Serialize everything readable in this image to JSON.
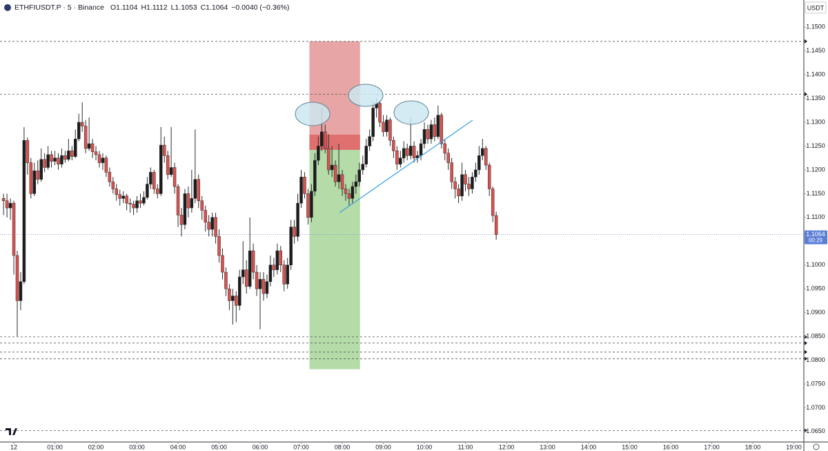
{
  "header": {
    "symbol": "ETHFIUSDT.P · 5 · Binance",
    "open": "O1.1104",
    "high": "H1.1112",
    "low": "L1.1053",
    "close": "C1.1064",
    "change": "−0.0040 (−0.36%)"
  },
  "chart_data": {
    "type": "candlestick",
    "currency": "USDT",
    "colors": {
      "up": "#1c1c1c",
      "down": "#d9534f",
      "outline": "#2a2a2a",
      "stop": "#e8a5a5",
      "stop_hit": "#e07070",
      "target": "#b5dca8",
      "level": "#555555",
      "price_line": "#5b7fd6"
    },
    "xlim": [
      -20.2,
      1152.6
    ],
    "ylim": [
      1.0628,
      1.1557
    ],
    "grid": false,
    "xticks": [
      {
        "value": 0,
        "label": "12"
      },
      {
        "value": 60,
        "label": "01:00"
      },
      {
        "value": 120,
        "label": "02:00"
      },
      {
        "value": 180,
        "label": "03:00"
      },
      {
        "value": 240,
        "label": "04:00"
      },
      {
        "value": 300,
        "label": "05:00"
      },
      {
        "value": 360,
        "label": "06:00"
      },
      {
        "value": 420,
        "label": "07:00"
      },
      {
        "value": 480,
        "label": "08:00"
      },
      {
        "value": 540,
        "label": "09:00"
      },
      {
        "value": 600,
        "label": "10:00"
      },
      {
        "value": 660,
        "label": "11:00"
      },
      {
        "value": 720,
        "label": "12:00"
      },
      {
        "value": 780,
        "label": "13:00"
      },
      {
        "value": 840,
        "label": "14:00"
      },
      {
        "value": 900,
        "label": "15:00"
      },
      {
        "value": 960,
        "label": "16:00"
      },
      {
        "value": 1020,
        "label": "17:00"
      },
      {
        "value": 1080,
        "label": "18:00"
      },
      {
        "value": 1140,
        "label": "19:00"
      }
    ],
    "yticks": [
      {
        "value": 1.15,
        "label": "1.1500"
      },
      {
        "value": 1.145,
        "label": "1.1450"
      },
      {
        "value": 1.14,
        "label": "1.1400"
      },
      {
        "value": 1.135,
        "label": "1.1350"
      },
      {
        "value": 1.13,
        "label": "1.1300"
      },
      {
        "value": 1.125,
        "label": "1.1250"
      },
      {
        "value": 1.12,
        "label": "1.1200"
      },
      {
        "value": 1.115,
        "label": "1.1150"
      },
      {
        "value": 1.11,
        "label": "1.1100"
      },
      {
        "value": 1.1,
        "label": "1.1000"
      },
      {
        "value": 1.095,
        "label": "1.0950"
      },
      {
        "value": 1.09,
        "label": "1.0900"
      },
      {
        "value": 1.085,
        "label": "1.0850"
      },
      {
        "value": 1.08,
        "label": "1.0800"
      },
      {
        "value": 1.075,
        "label": "1.0750"
      },
      {
        "value": 1.07,
        "label": "1.0700"
      },
      {
        "value": 1.065,
        "label": "1.0650"
      }
    ],
    "levels": [
      1.147,
      1.1359,
      1.0849,
      1.0836,
      1.0817,
      1.0803,
      1.0652
    ],
    "last_price": {
      "value": 1.1064,
      "label": "1.1064"
    },
    "countdown": "00:29",
    "position": {
      "x": [
        432,
        506
      ],
      "stop": 1.147,
      "entry": 1.1242,
      "current": 1.1274,
      "target": 1.0781
    },
    "candles": [
      [
        -15,
        1.114,
        1.115,
        1.1105,
        1.1135
      ],
      [
        -10,
        1.1135,
        1.115,
        1.11,
        1.112
      ],
      [
        -5,
        1.112,
        1.114,
        1.1095,
        1.113
      ],
      [
        0,
        1.113,
        1.1135,
        1.098,
        1.102
      ],
      [
        5,
        1.102,
        1.103,
        1.085,
        1.0925
      ],
      [
        10,
        1.0925,
        1.0985,
        1.0905,
        1.0965
      ],
      [
        15,
        1.0965,
        1.129,
        1.096,
        1.1262
      ],
      [
        20,
        1.1262,
        1.1268,
        1.119,
        1.1215
      ],
      [
        25,
        1.1215,
        1.1225,
        1.114,
        1.115
      ],
      [
        30,
        1.115,
        1.1215,
        1.1145,
        1.1198
      ],
      [
        35,
        1.1198,
        1.122,
        1.117,
        1.118
      ],
      [
        40,
        1.118,
        1.1245,
        1.1175,
        1.1222
      ],
      [
        45,
        1.1222,
        1.1235,
        1.1195,
        1.1205
      ],
      [
        50,
        1.1205,
        1.125,
        1.12,
        1.1232
      ],
      [
        55,
        1.1232,
        1.124,
        1.1205,
        1.1218
      ],
      [
        60,
        1.1218,
        1.124,
        1.121,
        1.1225
      ],
      [
        65,
        1.1225,
        1.1235,
        1.12,
        1.1212
      ],
      [
        70,
        1.1212,
        1.1245,
        1.1205,
        1.123
      ],
      [
        75,
        1.123,
        1.124,
        1.1215,
        1.1222
      ],
      [
        80,
        1.1222,
        1.1265,
        1.1218,
        1.124
      ],
      [
        85,
        1.124,
        1.125,
        1.122,
        1.1228
      ],
      [
        90,
        1.1228,
        1.1285,
        1.1225,
        1.1265
      ],
      [
        95,
        1.1265,
        1.1318,
        1.126,
        1.13
      ],
      [
        100,
        1.13,
        1.1342,
        1.128,
        1.1292
      ],
      [
        105,
        1.1292,
        1.1305,
        1.1235,
        1.1245
      ],
      [
        110,
        1.1245,
        1.131,
        1.124,
        1.1255
      ],
      [
        115,
        1.1255,
        1.1265,
        1.1225,
        1.1238
      ],
      [
        120,
        1.1238,
        1.125,
        1.122,
        1.1232
      ],
      [
        125,
        1.1232,
        1.124,
        1.1205,
        1.1215
      ],
      [
        130,
        1.1215,
        1.1235,
        1.12,
        1.1225
      ],
      [
        135,
        1.1225,
        1.123,
        1.1185,
        1.1195
      ],
      [
        140,
        1.1195,
        1.1205,
        1.1165,
        1.1175
      ],
      [
        145,
        1.1175,
        1.1185,
        1.115,
        1.116
      ],
      [
        150,
        1.116,
        1.117,
        1.1135,
        1.1148
      ],
      [
        155,
        1.1148,
        1.1158,
        1.1125,
        1.114
      ],
      [
        160,
        1.114,
        1.1155,
        1.113,
        1.1145
      ],
      [
        165,
        1.1145,
        1.115,
        1.1115,
        1.113
      ],
      [
        170,
        1.113,
        1.114,
        1.111,
        1.1128
      ],
      [
        175,
        1.1128,
        1.1135,
        1.1105,
        1.112
      ],
      [
        180,
        1.112,
        1.1145,
        1.111,
        1.1135
      ],
      [
        185,
        1.1135,
        1.115,
        1.112,
        1.113
      ],
      [
        190,
        1.113,
        1.1155,
        1.1125,
        1.1142
      ],
      [
        195,
        1.1142,
        1.1185,
        1.1138,
        1.117
      ],
      [
        200,
        1.117,
        1.1205,
        1.116,
        1.1195
      ],
      [
        205,
        1.1195,
        1.12,
        1.115,
        1.116
      ],
      [
        210,
        1.116,
        1.117,
        1.114,
        1.115
      ],
      [
        215,
        1.115,
        1.129,
        1.1145,
        1.1252
      ],
      [
        220,
        1.1252,
        1.127,
        1.1215,
        1.123
      ],
      [
        225,
        1.123,
        1.124,
        1.118,
        1.119
      ],
      [
        230,
        1.119,
        1.129,
        1.1185,
        1.1205
      ],
      [
        235,
        1.1205,
        1.1215,
        1.115,
        1.1165
      ],
      [
        240,
        1.1165,
        1.117,
        1.108,
        1.1105
      ],
      [
        245,
        1.1105,
        1.112,
        1.106,
        1.1085
      ],
      [
        250,
        1.1085,
        1.116,
        1.1075,
        1.115
      ],
      [
        255,
        1.115,
        1.1165,
        1.11,
        1.112
      ],
      [
        260,
        1.112,
        1.12,
        1.111,
        1.114
      ],
      [
        265,
        1.114,
        1.1285,
        1.113,
        1.118
      ],
      [
        270,
        1.118,
        1.119,
        1.112,
        1.1135
      ],
      [
        275,
        1.1135,
        1.1145,
        1.1095,
        1.1115
      ],
      [
        280,
        1.1115,
        1.1125,
        1.107,
        1.109
      ],
      [
        285,
        1.109,
        1.1105,
        1.106,
        1.1075
      ],
      [
        290,
        1.1075,
        1.111,
        1.106,
        1.11
      ],
      [
        295,
        1.11,
        1.111,
        1.1045,
        1.106
      ],
      [
        300,
        1.106,
        1.1075,
        1.1005,
        1.102
      ],
      [
        305,
        1.102,
        1.1035,
        1.097,
        1.0985
      ],
      [
        310,
        1.0985,
        1.0995,
        1.0935,
        1.095
      ],
      [
        315,
        1.095,
        1.096,
        1.0905,
        1.0925
      ],
      [
        320,
        1.0925,
        1.095,
        1.0875,
        1.0935
      ],
      [
        325,
        1.0935,
        1.0945,
        1.088,
        1.0915
      ],
      [
        330,
        1.0915,
        1.099,
        1.0905,
        1.0975
      ],
      [
        335,
        1.0975,
        1.105,
        1.096,
        1.099
      ],
      [
        340,
        1.099,
        1.101,
        1.094,
        1.0955
      ],
      [
        345,
        1.0955,
        1.11,
        1.095,
        1.103
      ],
      [
        350,
        1.103,
        1.1045,
        1.097,
        1.0985
      ],
      [
        355,
        1.0985,
        1.1,
        1.0935,
        1.095
      ],
      [
        360,
        1.095,
        1.0985,
        1.0865,
        1.097
      ],
      [
        365,
        1.097,
        1.0985,
        1.0925,
        1.094
      ],
      [
        370,
        1.094,
        1.098,
        1.093,
        1.0965
      ],
      [
        375,
        1.0965,
        1.102,
        1.0955,
        1.1
      ],
      [
        380,
        1.1,
        1.1015,
        1.0975,
        1.099
      ],
      [
        385,
        1.099,
        1.1045,
        1.098,
        1.103
      ],
      [
        390,
        1.103,
        1.104,
        1.0985,
        1.1
      ],
      [
        395,
        1.1,
        1.101,
        1.0945,
        1.096
      ],
      [
        400,
        1.096,
        1.1015,
        1.095,
        1.1
      ],
      [
        405,
        1.1,
        1.1095,
        1.099,
        1.108
      ],
      [
        410,
        1.108,
        1.1095,
        1.1045,
        1.106
      ],
      [
        415,
        1.106,
        1.115,
        1.105,
        1.113
      ],
      [
        420,
        1.113,
        1.12,
        1.112,
        1.1185
      ],
      [
        425,
        1.1185,
        1.1195,
        1.114,
        1.115
      ],
      [
        430,
        1.115,
        1.116,
        1.1085,
        1.11
      ],
      [
        435,
        1.11,
        1.117,
        1.109,
        1.1155
      ],
      [
        440,
        1.1155,
        1.1235,
        1.1145,
        1.122
      ],
      [
        445,
        1.122,
        1.127,
        1.121,
        1.125
      ],
      [
        450,
        1.125,
        1.133,
        1.124,
        1.128
      ],
      [
        455,
        1.128,
        1.1295,
        1.1235,
        1.1245
      ],
      [
        460,
        1.1245,
        1.1275,
        1.119,
        1.12
      ],
      [
        465,
        1.12,
        1.125,
        1.1185,
        1.121
      ],
      [
        470,
        1.121,
        1.122,
        1.1165,
        1.1175
      ],
      [
        475,
        1.1175,
        1.1255,
        1.116,
        1.119
      ],
      [
        480,
        1.119,
        1.12,
        1.1145,
        1.116
      ],
      [
        485,
        1.116,
        1.117,
        1.1135,
        1.115
      ],
      [
        490,
        1.115,
        1.116,
        1.1125,
        1.114
      ],
      [
        495,
        1.114,
        1.1175,
        1.113,
        1.1165
      ],
      [
        500,
        1.1165,
        1.119,
        1.115,
        1.1175
      ],
      [
        505,
        1.1175,
        1.1215,
        1.1165,
        1.12
      ],
      [
        510,
        1.12,
        1.123,
        1.119,
        1.1212
      ],
      [
        515,
        1.1212,
        1.1265,
        1.1205,
        1.125
      ],
      [
        520,
        1.125,
        1.1285,
        1.124,
        1.127
      ],
      [
        525,
        1.127,
        1.1345,
        1.126,
        1.133
      ],
      [
        530,
        1.133,
        1.135,
        1.131,
        1.134
      ],
      [
        535,
        1.134,
        1.1345,
        1.129,
        1.13
      ],
      [
        540,
        1.13,
        1.1315,
        1.127,
        1.128
      ],
      [
        545,
        1.128,
        1.1315,
        1.127,
        1.1305
      ],
      [
        550,
        1.1305,
        1.131,
        1.125,
        1.1262
      ],
      [
        555,
        1.1262,
        1.127,
        1.1225,
        1.124
      ],
      [
        560,
        1.124,
        1.125,
        1.12,
        1.1212
      ],
      [
        565,
        1.1212,
        1.124,
        1.1205,
        1.1225
      ],
      [
        570,
        1.1225,
        1.126,
        1.1215,
        1.1245
      ],
      [
        575,
        1.1245,
        1.1255,
        1.122,
        1.123
      ],
      [
        580,
        1.123,
        1.131,
        1.1222,
        1.125
      ],
      [
        585,
        1.125,
        1.126,
        1.1215,
        1.1225
      ],
      [
        590,
        1.1225,
        1.124,
        1.1215,
        1.123
      ],
      [
        595,
        1.123,
        1.1265,
        1.122,
        1.1255
      ],
      [
        600,
        1.1255,
        1.13,
        1.1245,
        1.1285
      ],
      [
        605,
        1.1285,
        1.1295,
        1.1255,
        1.1265
      ],
      [
        610,
        1.1265,
        1.1305,
        1.1255,
        1.1295
      ],
      [
        615,
        1.1295,
        1.131,
        1.126,
        1.127
      ],
      [
        620,
        1.127,
        1.1335,
        1.1265,
        1.1315
      ],
      [
        625,
        1.1315,
        1.132,
        1.1245,
        1.1255
      ],
      [
        630,
        1.1255,
        1.1265,
        1.122,
        1.1235
      ],
      [
        635,
        1.1235,
        1.1245,
        1.12,
        1.1215
      ],
      [
        640,
        1.1215,
        1.1225,
        1.116,
        1.1175
      ],
      [
        645,
        1.1175,
        1.1185,
        1.114,
        1.116
      ],
      [
        650,
        1.116,
        1.117,
        1.113,
        1.1145
      ],
      [
        655,
        1.1145,
        1.1215,
        1.1135,
        1.119
      ],
      [
        660,
        1.119,
        1.12,
        1.1155,
        1.117
      ],
      [
        665,
        1.117,
        1.1185,
        1.1145,
        1.116
      ],
      [
        670,
        1.116,
        1.1195,
        1.115,
        1.1185
      ],
      [
        675,
        1.1185,
        1.1215,
        1.1175,
        1.12
      ],
      [
        680,
        1.12,
        1.125,
        1.119,
        1.123
      ],
      [
        685,
        1.123,
        1.1265,
        1.122,
        1.1245
      ],
      [
        690,
        1.1245,
        1.125,
        1.12,
        1.121
      ],
      [
        695,
        1.121,
        1.1215,
        1.1145,
        1.116
      ],
      [
        700,
        1.116,
        1.1165,
        1.109,
        1.1104
      ],
      [
        705,
        1.1104,
        1.1112,
        1.1053,
        1.1064
      ]
    ]
  }
}
